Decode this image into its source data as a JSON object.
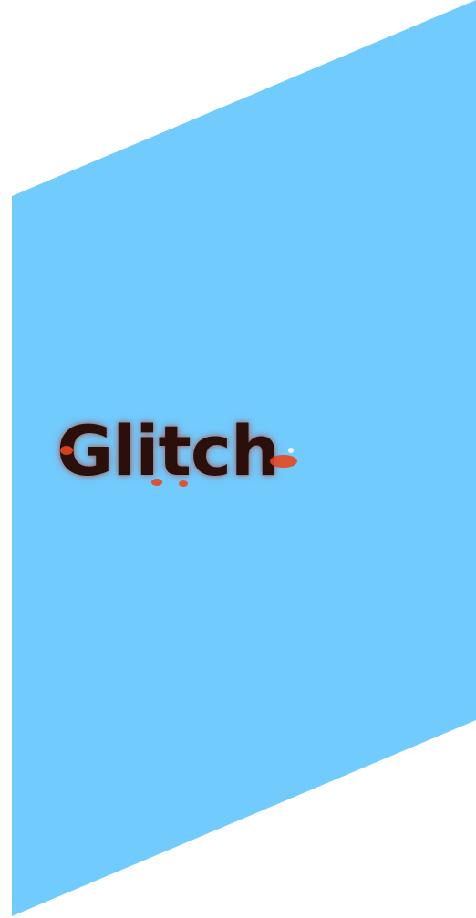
{
  "logo": {
    "text": "Glitch",
    "icon": "glitch-wordmark-logo"
  },
  "colors": {
    "background": "#ffffff",
    "panel": "#72cbfd",
    "logo_dark": "#2a0f0b",
    "logo_accent": "#e8461f"
  }
}
